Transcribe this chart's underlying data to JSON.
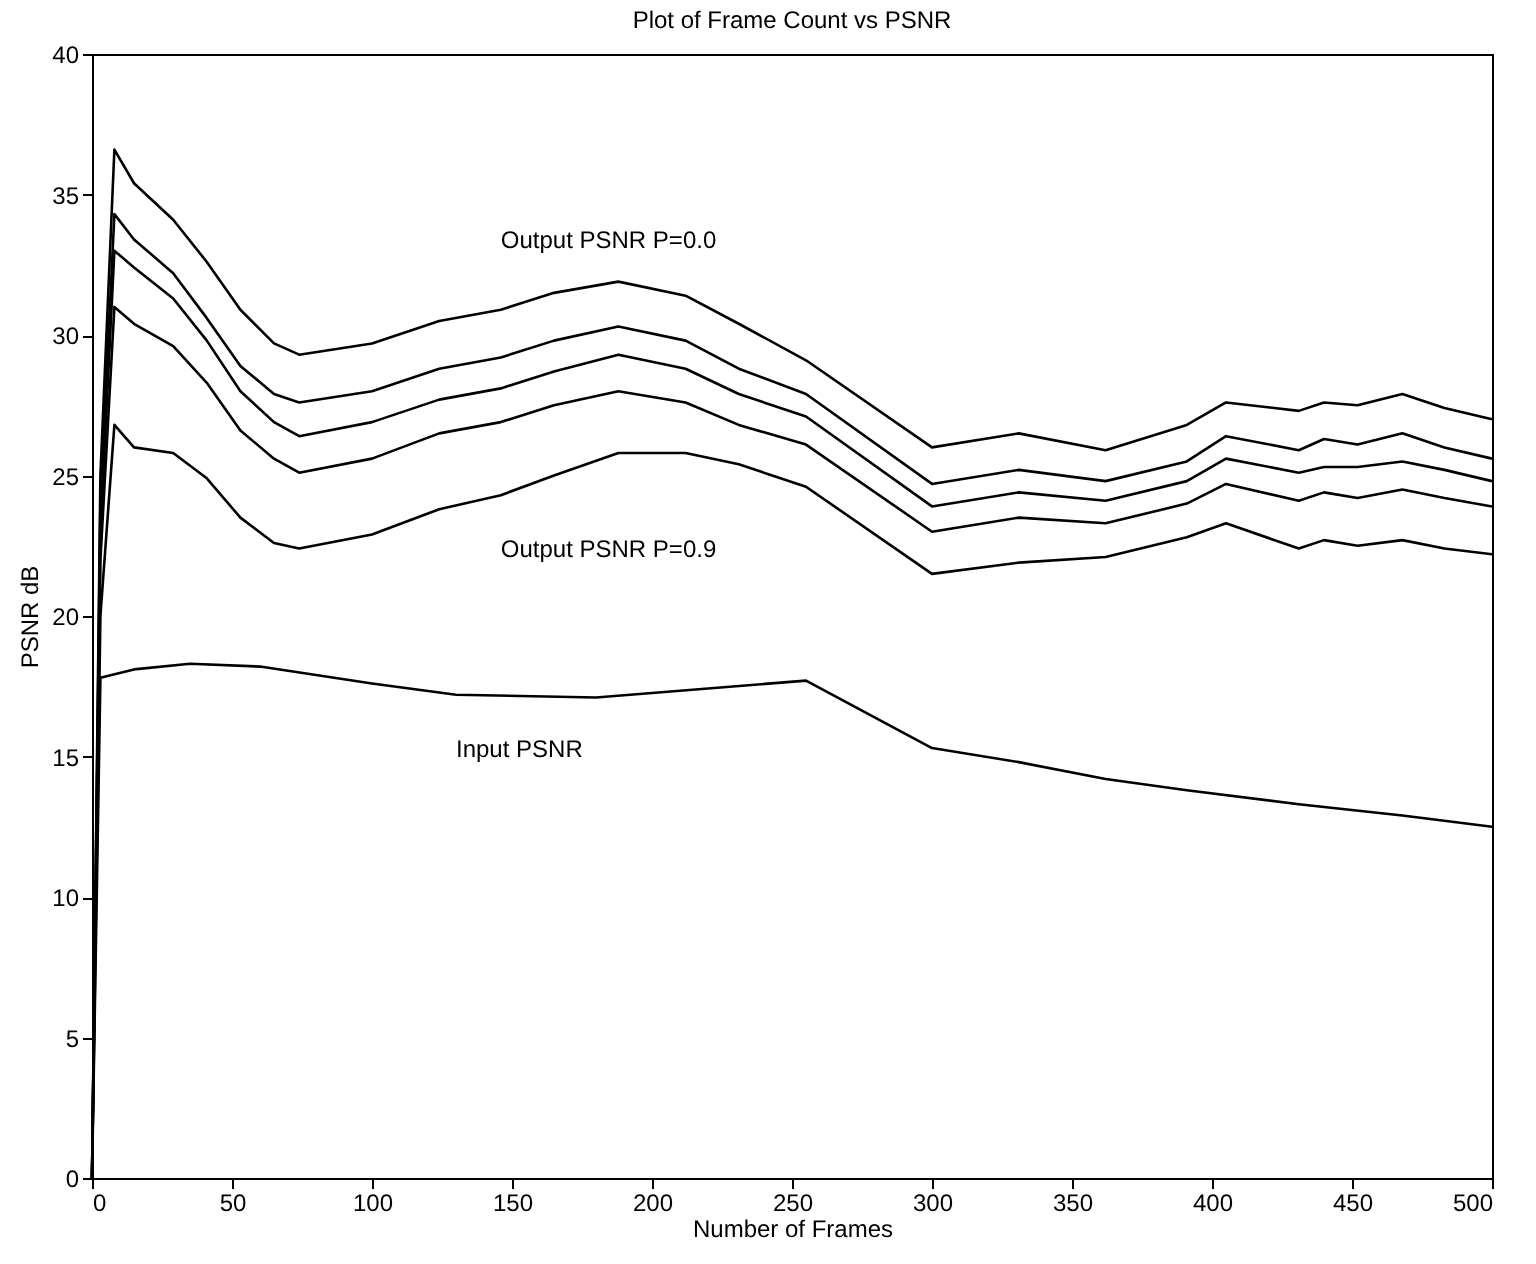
{
  "chart_data": {
    "type": "line",
    "title": "Plot of Frame Count vs PSNR",
    "xlabel": "Number of Frames",
    "ylabel": "PSNR dB",
    "xlim": [
      0,
      500
    ],
    "xticks": [
      0,
      50,
      100,
      150,
      200,
      250,
      300,
      350,
      400,
      450,
      500
    ],
    "ylim": [
      0,
      40
    ],
    "yticks": [
      0,
      5,
      10,
      15,
      20,
      25,
      30,
      35,
      40
    ],
    "grid": false,
    "legend": false,
    "line_style": "solid",
    "marker": "none",
    "x": [
      0,
      3,
      8,
      15,
      29,
      41,
      53,
      65,
      74,
      100,
      124,
      146,
      165,
      188,
      212,
      231,
      255,
      300,
      331,
      362,
      391,
      405,
      431,
      440,
      452,
      468,
      483,
      500
    ],
    "series": [
      {
        "name": "Output PSNR P=0.0",
        "color": "#000000",
        "values": [
          0,
          25,
          36.6,
          35.4,
          34.1,
          32.6,
          30.9,
          29.7,
          29.3,
          29.7,
          30.5,
          30.9,
          31.5,
          31.9,
          31.4,
          30.4,
          29.1,
          26.0,
          26.5,
          25.9,
          26.8,
          27.6,
          27.3,
          27.6,
          27.5,
          27.9,
          27.4,
          27.0
        ]
      },
      {
        "color": "#000000",
        "values": [
          0,
          24,
          34.3,
          33.4,
          32.2,
          30.6,
          28.9,
          27.9,
          27.6,
          28.0,
          28.8,
          29.2,
          29.8,
          30.3,
          29.8,
          28.8,
          27.9,
          24.7,
          25.2,
          24.8,
          25.5,
          26.4,
          25.9,
          26.3,
          26.1,
          26.5,
          26.0,
          25.6
        ]
      },
      {
        "color": "#000000",
        "values": [
          0,
          23,
          33.0,
          32.4,
          31.3,
          29.8,
          28.0,
          26.9,
          26.4,
          26.9,
          27.7,
          28.1,
          28.7,
          29.3,
          28.8,
          27.9,
          27.1,
          23.9,
          24.4,
          24.1,
          24.8,
          25.6,
          25.1,
          25.3,
          25.3,
          25.5,
          25.2,
          24.8
        ]
      },
      {
        "color": "#000000",
        "values": [
          0,
          22,
          31.0,
          30.4,
          29.6,
          28.3,
          26.6,
          25.6,
          25.1,
          25.6,
          26.5,
          26.9,
          27.5,
          28.0,
          27.6,
          26.8,
          26.1,
          23.0,
          23.5,
          23.3,
          24.0,
          24.7,
          24.1,
          24.4,
          24.2,
          24.5,
          24.2,
          23.9
        ]
      },
      {
        "name": "Output PSNR P=0.9",
        "color": "#000000",
        "values": [
          0,
          20,
          26.8,
          26.0,
          25.8,
          24.9,
          23.5,
          22.6,
          22.4,
          22.9,
          23.8,
          24.3,
          25.0,
          25.8,
          25.8,
          25.4,
          24.6,
          21.5,
          21.9,
          22.1,
          22.8,
          23.3,
          22.4,
          22.7,
          22.5,
          22.7,
          22.4,
          22.2
        ]
      },
      {
        "name": "Input PSNR",
        "color": "#000000",
        "x": [
          0,
          3,
          15,
          35,
          60,
          100,
          130,
          180,
          230,
          255,
          300,
          331,
          362,
          391,
          431,
          468,
          500
        ],
        "values": [
          0,
          17.8,
          18.1,
          18.3,
          18.2,
          17.6,
          17.2,
          17.1,
          17.5,
          17.7,
          15.3,
          14.8,
          14.2,
          13.8,
          13.3,
          12.9,
          12.5
        ]
      }
    ]
  }
}
